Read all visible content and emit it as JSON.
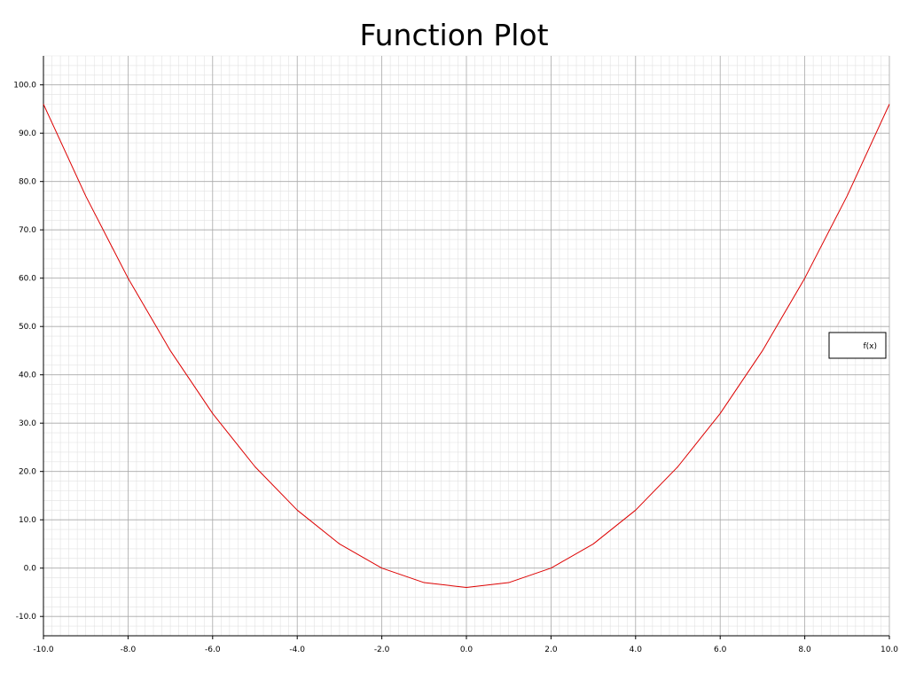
{
  "chart_data": {
    "type": "line",
    "title": "Function Plot",
    "xlabel": "",
    "ylabel": "",
    "xlim": [
      -10.0,
      10.0
    ],
    "ylim": [
      -14.0,
      106.0
    ],
    "x_ticks": [
      "-10.0",
      "-8.0",
      "-6.0",
      "-4.0",
      "-2.0",
      "0.0",
      "2.0",
      "4.0",
      "6.0",
      "8.0",
      "10.0"
    ],
    "y_ticks": [
      "-10.0",
      "0.0",
      "10.0",
      "20.0",
      "30.0",
      "40.0",
      "50.0",
      "60.0",
      "70.0",
      "80.0",
      "90.0",
      "100.0"
    ],
    "grid": true,
    "legend_position": "right",
    "series": [
      {
        "name": "f(x)",
        "color": "#dd0000",
        "x": [
          -10,
          -9,
          -8,
          -7,
          -6,
          -5,
          -4,
          -3,
          -2,
          -1,
          0,
          1,
          2,
          3,
          4,
          5,
          6,
          7,
          8,
          9,
          10
        ],
        "y": [
          96,
          77,
          60,
          45,
          32,
          21,
          12,
          5,
          0,
          -3,
          -4,
          -3,
          0,
          5,
          12,
          21,
          32,
          45,
          60,
          77,
          96
        ]
      }
    ]
  }
}
